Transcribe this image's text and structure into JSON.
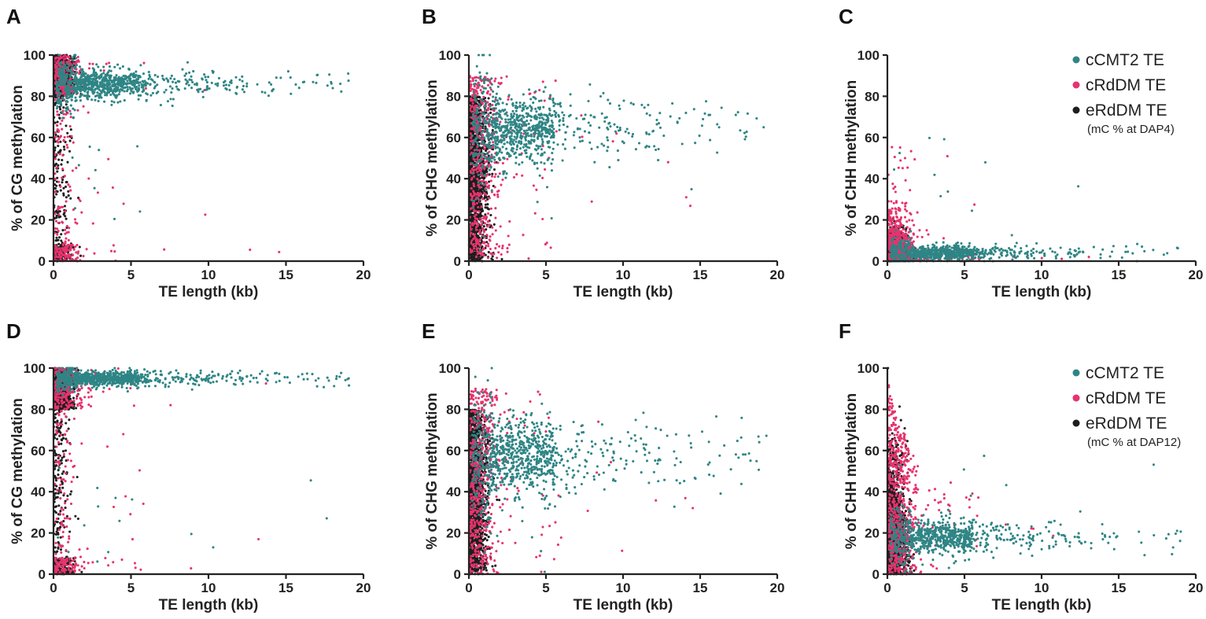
{
  "colors": {
    "cCMT2": "#2f8585",
    "cRdDM": "#e7336d",
    "eRdDM": "#1d1d1d",
    "axis": "#222222"
  },
  "chart_data": [
    {
      "panel": "A",
      "type": "scatter",
      "xlabel": "TE length (kb)",
      "ylabel": "% of CG methylation",
      "xlim": [
        0,
        20
      ],
      "ylim": [
        0,
        100
      ],
      "xticks": [
        "0",
        "5",
        "10",
        "15",
        "20"
      ],
      "yticks": [
        "0",
        "20",
        "40",
        "60",
        "80",
        "100"
      ],
      "series": [
        {
          "name": "cCMT2 TE",
          "profile": {
            "plateau": 86,
            "spread": 3.5,
            "n": 900
          }
        },
        {
          "name": "cRdDM TE",
          "profile": {
            "shape": "cg",
            "n": 450
          }
        },
        {
          "name": "eRdDM TE",
          "profile": {
            "shape": "cg-black",
            "n": 1200
          }
        }
      ],
      "legend": null
    },
    {
      "panel": "B",
      "type": "scatter",
      "xlabel": "TE length (kb)",
      "ylabel": "% of CHG methylation",
      "xlim": [
        0,
        20
      ],
      "ylim": [
        0,
        100
      ],
      "xticks": [
        "0",
        "5",
        "10",
        "15",
        "20"
      ],
      "yticks": [
        "0",
        "20",
        "40",
        "60",
        "80",
        "100"
      ],
      "series": [
        {
          "name": "cCMT2 TE",
          "profile": {
            "plateau": 64,
            "spread": 8,
            "n": 900
          }
        },
        {
          "name": "cRdDM TE",
          "profile": {
            "shape": "chg",
            "n": 550
          }
        },
        {
          "name": "eRdDM TE",
          "profile": {
            "shape": "chg-black",
            "n": 1300
          }
        }
      ],
      "legend": null
    },
    {
      "panel": "C",
      "type": "scatter",
      "xlabel": "TE length (kb)",
      "ylabel": "% of CHH methylation",
      "xlim": [
        0,
        20
      ],
      "ylim": [
        0,
        100
      ],
      "xticks": [
        "0",
        "5",
        "10",
        "15",
        "20"
      ],
      "yticks": [
        "0",
        "20",
        "40",
        "60",
        "80",
        "100"
      ],
      "series": [
        {
          "name": "cCMT2 TE",
          "profile": {
            "plateau": 4,
            "spread": 1.8,
            "n": 800
          }
        },
        {
          "name": "cRdDM TE",
          "profile": {
            "shape": "chh",
            "n": 600
          }
        },
        {
          "name": "eRdDM TE",
          "profile": {
            "shape": "chh-black",
            "n": 1300
          }
        }
      ],
      "legend": {
        "entries": [
          "cCMT2 TE",
          "cRdDM TE",
          "eRdDM TE"
        ],
        "note": "(mC % at DAP4)",
        "placement": "top-right"
      }
    },
    {
      "panel": "D",
      "type": "scatter",
      "xlabel": "TE length (kb)",
      "ylabel": "% of CG methylation",
      "xlim": [
        0,
        20
      ],
      "ylim": [
        0,
        100
      ],
      "xticks": [
        "0",
        "5",
        "10",
        "15",
        "20"
      ],
      "yticks": [
        "0",
        "20",
        "40",
        "60",
        "80",
        "100"
      ],
      "series": [
        {
          "name": "cCMT2 TE",
          "profile": {
            "plateau": 95,
            "spread": 1.8,
            "n": 900
          }
        },
        {
          "name": "cRdDM TE",
          "profile": {
            "shape": "cg",
            "n": 450
          }
        },
        {
          "name": "eRdDM TE",
          "profile": {
            "shape": "cg-black",
            "n": 1200
          }
        }
      ],
      "legend": null
    },
    {
      "panel": "E",
      "type": "scatter",
      "xlabel": "TE length (kb)",
      "ylabel": "% of CHG methylation",
      "xlim": [
        0,
        20
      ],
      "ylim": [
        0,
        100
      ],
      "xticks": [
        "0",
        "5",
        "10",
        "15",
        "20"
      ],
      "yticks": [
        "0",
        "20",
        "40",
        "60",
        "80",
        "100"
      ],
      "series": [
        {
          "name": "cCMT2 TE",
          "profile": {
            "plateau": 58,
            "spread": 9,
            "n": 900
          }
        },
        {
          "name": "cRdDM TE",
          "profile": {
            "shape": "chg",
            "n": 550
          }
        },
        {
          "name": "eRdDM TE",
          "profile": {
            "shape": "chg-black",
            "n": 1300
          }
        }
      ],
      "legend": null
    },
    {
      "panel": "F",
      "type": "scatter",
      "xlabel": "TE length (kb)",
      "ylabel": "% of CHH methylation",
      "xlim": [
        0,
        20
      ],
      "ylim": [
        0,
        100
      ],
      "xticks": [
        "0",
        "5",
        "10",
        "15",
        "20"
      ],
      "yticks": [
        "0",
        "20",
        "40",
        "60",
        "80",
        "100"
      ],
      "series": [
        {
          "name": "cCMT2 TE",
          "profile": {
            "plateau": 18,
            "spread": 4,
            "n": 800
          }
        },
        {
          "name": "cRdDM TE",
          "profile": {
            "shape": "chh-high",
            "n": 700
          }
        },
        {
          "name": "eRdDM TE",
          "profile": {
            "shape": "chh-black-high",
            "n": 1400
          }
        }
      ],
      "legend": {
        "entries": [
          "cCMT2 TE",
          "cRdDM TE",
          "eRdDM TE"
        ],
        "note": "(mC % at DAP12)",
        "placement": "top-right"
      }
    }
  ]
}
